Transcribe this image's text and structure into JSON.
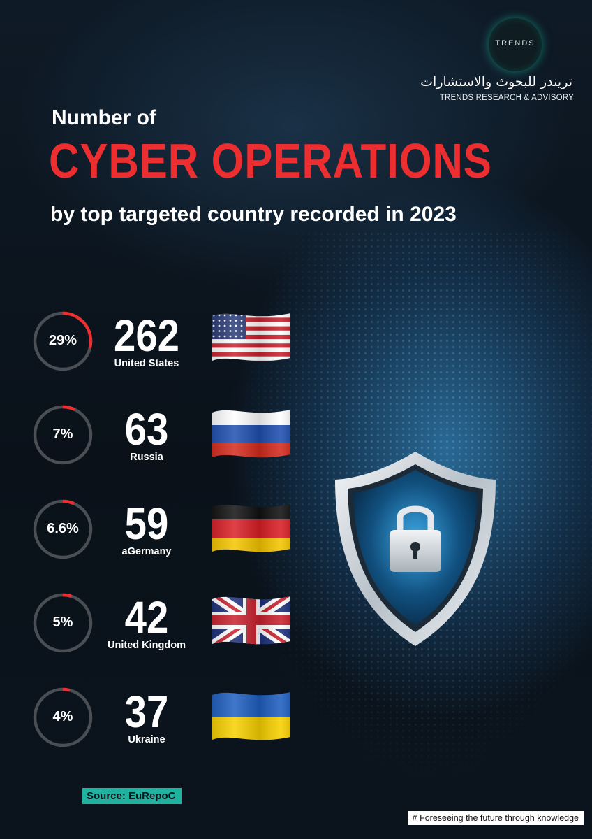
{
  "logo": {
    "mark_text": "TRENDS",
    "arabic_name": "تريندز للبحوث والاستشارات",
    "english_name": "TRENDS RESEARCH & ADVISORY"
  },
  "title": {
    "line1": "Number of",
    "line2": "CYBER OPERATIONS",
    "line3": "by top targeted country recorded in 2023"
  },
  "chart_data": {
    "type": "bar",
    "title": "Number of CYBER OPERATIONS by top targeted country recorded in 2023",
    "categories": [
      "United States",
      "Russia",
      "aGermany",
      "United Kingdom",
      "Ukraine"
    ],
    "values": [
      262,
      63,
      59,
      42,
      37
    ],
    "percentages": [
      29,
      7,
      6.6,
      5,
      4
    ],
    "percent_labels": [
      "29%",
      "7%",
      "6.6%",
      "5%",
      "4%"
    ],
    "value_labels": [
      "262",
      "63",
      "59",
      "42",
      "37"
    ]
  },
  "flags": [
    "us-flag",
    "russia-flag",
    "germany-flag",
    "uk-flag",
    "ukraine-flag"
  ],
  "colors": {
    "accent_red": "#ec2e30",
    "ring_track": "#4a4f55",
    "source_bg": "#1fb39f",
    "background": "#0b141d"
  },
  "source": "Source: EuRepoC",
  "tagline": "# Foreseeing the future through knowledge"
}
